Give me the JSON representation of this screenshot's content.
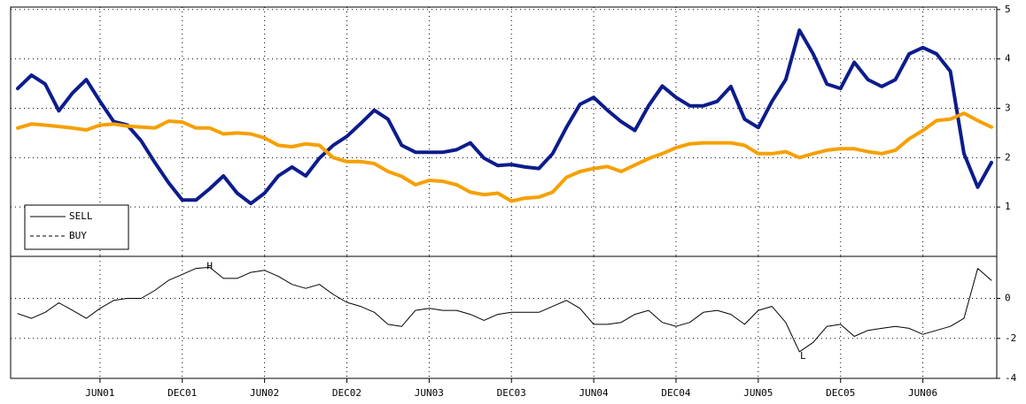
{
  "chart_data": [
    {
      "type": "line",
      "ylim": [
        0,
        5.05
      ],
      "yticks": [
        1,
        2,
        3,
        4,
        5
      ],
      "grid": true,
      "legend": "lower left",
      "series": [
        {
          "name": "SELL",
          "color": "#0c1c8c",
          "legend_style": "solid",
          "values": [
            3.4,
            3.67,
            3.49,
            2.95,
            3.31,
            3.58,
            3.14,
            2.73,
            2.66,
            2.34,
            1.9,
            1.49,
            1.14,
            1.14,
            1.37,
            1.63,
            1.28,
            1.07,
            1.28,
            1.63,
            1.81,
            1.63,
            1.99,
            2.25,
            2.43,
            2.69,
            2.96,
            2.78,
            2.25,
            2.11,
            2.11,
            2.11,
            2.16,
            2.3,
            1.99,
            1.84,
            1.86,
            1.81,
            1.78,
            2.08,
            2.61,
            3.08,
            3.22,
            2.96,
            2.73,
            2.55,
            3.05,
            3.45,
            3.22,
            3.05,
            3.05,
            3.14,
            3.44,
            2.78,
            2.61,
            3.14,
            3.58,
            4.58,
            4.1,
            3.49,
            3.4,
            3.93,
            3.58,
            3.44,
            3.58,
            4.1,
            4.23,
            4.1,
            3.75,
            2.08,
            1.4,
            1.9
          ]
        },
        {
          "name": "BUY",
          "color": "#f5a000",
          "legend_style": "dashed",
          "values": [
            2.6,
            2.68,
            2.66,
            2.63,
            2.6,
            2.56,
            2.66,
            2.68,
            2.64,
            2.62,
            2.6,
            2.74,
            2.72,
            2.6,
            2.6,
            2.48,
            2.5,
            2.48,
            2.4,
            2.25,
            2.22,
            2.28,
            2.25,
            2.0,
            1.92,
            1.92,
            1.88,
            1.72,
            1.62,
            1.45,
            1.54,
            1.52,
            1.45,
            1.3,
            1.25,
            1.28,
            1.12,
            1.18,
            1.2,
            1.3,
            1.6,
            1.72,
            1.78,
            1.82,
            1.72,
            1.85,
            1.98,
            2.08,
            2.2,
            2.28,
            2.3,
            2.3,
            2.3,
            2.25,
            2.08,
            2.08,
            2.12,
            2.0,
            2.08,
            2.15,
            2.18,
            2.18,
            2.12,
            2.08,
            2.15,
            2.38,
            2.55,
            2.75,
            2.78,
            2.9,
            2.75,
            2.62
          ]
        }
      ]
    },
    {
      "type": "line",
      "ylim": [
        -4,
        2.1
      ],
      "yticks": [
        -4,
        -2,
        0
      ],
      "grid": true,
      "color": "#000000",
      "annotations": [
        "H",
        "L"
      ],
      "categories": [
        null,
        null,
        null,
        null,
        null,
        null,
        "JUN01",
        null,
        null,
        null,
        null,
        null,
        "DEC01",
        null,
        null,
        null,
        null,
        null,
        "JUN02",
        null,
        null,
        null,
        null,
        null,
        "DEC02",
        null,
        null,
        null,
        null,
        null,
        "JUN03",
        null,
        null,
        null,
        null,
        null,
        "DEC03",
        null,
        null,
        null,
        null,
        null,
        "JUN04",
        null,
        null,
        null,
        null,
        null,
        "DEC04",
        null,
        null,
        null,
        null,
        null,
        "JUN05",
        null,
        null,
        null,
        null,
        null,
        "DEC05",
        null,
        null,
        null,
        null,
        null,
        "JUN06",
        null,
        null,
        null,
        null,
        null
      ],
      "values": [
        -0.76,
        -1.0,
        -0.7,
        -0.22,
        -0.6,
        -1.0,
        -0.5,
        -0.1,
        0,
        0,
        0.4,
        0.9,
        1.2,
        1.5,
        1.55,
        1.0,
        1.0,
        1.3,
        1.4,
        1.1,
        0.7,
        0.5,
        0.7,
        0.2,
        -0.2,
        -0.4,
        -0.7,
        -1.3,
        -1.4,
        -0.6,
        -0.5,
        -0.6,
        -0.6,
        -0.8,
        -1.1,
        -0.8,
        -0.7,
        -0.7,
        -0.7,
        -0.4,
        -0.1,
        -0.5,
        -1.3,
        -1.3,
        -1.2,
        -0.8,
        -0.6,
        -1.2,
        -1.4,
        -1.2,
        -0.7,
        -0.6,
        -0.8,
        -1.3,
        -0.6,
        -0.4,
        -1.2,
        -2.67,
        -2.2,
        -1.4,
        -1.3,
        -1.9,
        -1.6,
        -1.5,
        -1.4,
        -1.5,
        -1.8,
        -1.6,
        -1.4,
        -1.0,
        1.5,
        0.9
      ]
    }
  ]
}
